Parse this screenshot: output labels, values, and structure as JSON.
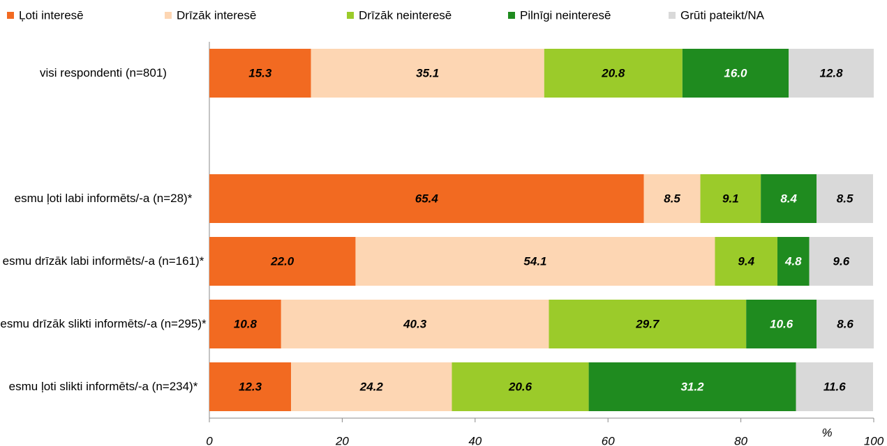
{
  "chart_data": {
    "type": "stacked_bar_horizontal",
    "categories": [
      "visi respondenti (n=801)",
      null,
      "esmu ļoti labi informēts/-a (n=28)*",
      "esmu drīzāk labi informēts/-a (n=161)*",
      "esmu drīzāk slikti informēts/-a (n=295)*",
      "esmu ļoti slikti informēts/-a (n=234)*"
    ],
    "series": [
      {
        "name": "Ļoti interesē",
        "color": "#f26a21",
        "label_color": "#000000",
        "values": [
          15.3,
          null,
          65.4,
          22.0,
          10.8,
          12.3
        ],
        "value_labels": [
          "15.3",
          null,
          "65.4",
          "22.0",
          "10.8",
          "12.3"
        ]
      },
      {
        "name": "Drīzāk interesē",
        "color": "#fdd6b3",
        "label_color": "#000000",
        "values": [
          35.1,
          null,
          8.5,
          54.1,
          40.3,
          24.2
        ],
        "value_labels": [
          "35.1",
          null,
          "8.5",
          "54.1",
          "40.3",
          "24.2"
        ]
      },
      {
        "name": "Drīzāk neinteresē",
        "color": "#9bcb2a",
        "label_color": "#000000",
        "values": [
          20.8,
          null,
          9.1,
          9.4,
          29.7,
          20.6
        ],
        "value_labels": [
          "20.8",
          null,
          "9.1",
          "9.4",
          "29.7",
          "20.6"
        ]
      },
      {
        "name": "Pilnīgi neinteresē",
        "color": "#1f8b1f",
        "label_color": "#ffffff",
        "values": [
          16.0,
          null,
          8.4,
          4.8,
          10.6,
          31.2
        ],
        "value_labels": [
          "16.0",
          null,
          "8.4",
          "4.8",
          "10.6",
          "31.2"
        ]
      },
      {
        "name": "Grūti pateikt/NA",
        "color": "#d9d9d9",
        "label_color": "#000000",
        "values": [
          12.8,
          null,
          8.5,
          9.6,
          8.6,
          11.6
        ],
        "value_labels": [
          "12.8",
          null,
          "8.5",
          "9.6",
          "8.6",
          "11.6"
        ]
      }
    ],
    "xlim": [
      0,
      100
    ],
    "xticks": [
      0,
      20,
      40,
      60,
      80,
      100
    ],
    "x_unit": "%"
  }
}
